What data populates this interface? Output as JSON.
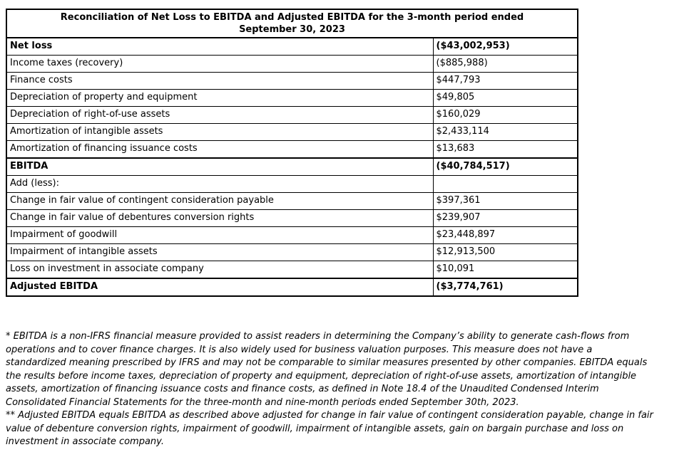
{
  "colors": {
    "border": "#000000",
    "text": "#000000",
    "background": "#ffffff"
  },
  "table": {
    "title": {
      "line1": "Reconciliation of Net Loss to EBITDA and Adjusted EBITDA for the 3-month period ended",
      "line2": "September 30, 2023"
    },
    "rows": [
      {
        "label": "Net loss",
        "value": "($43,002,953)",
        "bold": true,
        "top_border": false
      },
      {
        "label": "Income taxes (recovery)",
        "value": "($885,988)",
        "bold": false,
        "top_border": false
      },
      {
        "label": "Finance costs",
        "value": "$447,793",
        "bold": false,
        "top_border": false
      },
      {
        "label": "Depreciation of property and equipment",
        "value": "$49,805",
        "bold": false,
        "top_border": false
      },
      {
        "label": "Depreciation of right-of-use assets",
        "value": "$160,029",
        "bold": false,
        "top_border": false
      },
      {
        "label": "Amortization of intangible assets",
        "value": "$2,433,114",
        "bold": false,
        "top_border": false
      },
      {
        "label": "Amortization of financing issuance costs",
        "value": "$13,683",
        "bold": false,
        "top_border": false
      },
      {
        "label": "EBITDA",
        "value": "($40,784,517)",
        "bold": true,
        "top_border": true
      },
      {
        "label": "Add (less):",
        "value": "",
        "bold": false,
        "top_border": false
      },
      {
        "label": "Change in fair value of contingent consideration payable",
        "value": "$397,361",
        "bold": false,
        "top_border": false
      },
      {
        "label": "Change in fair value of debentures conversion rights",
        "value": "$239,907",
        "bold": false,
        "top_border": false
      },
      {
        "label": "Impairment of goodwill",
        "value": "$23,448,897",
        "bold": false,
        "top_border": false
      },
      {
        "label": "Impairment of intangible assets",
        "value": "$12,913,500",
        "bold": false,
        "top_border": false
      },
      {
        "label": "Loss on investment in associate company",
        "value": "$10,091",
        "bold": false,
        "top_border": false
      },
      {
        "label": "Adjusted EBITDA",
        "value": "($3,774,761)",
        "bold": true,
        "top_border": true
      }
    ]
  },
  "footnotes": [
    "* EBITDA is a non-IFRS financial measure provided to assist readers in determining the Company’s ability to generate cash-flows from operations and to cover finance charges. It is also widely used for business valuation purposes. This measure does not have a standardized meaning prescribed by IFRS and may not be comparable to similar measures presented by other companies. EBITDA equals the results before income taxes, depreciation of property and equipment, depreciation of right-of-use assets, amortization of intangible assets, amortization of financing issuance costs and finance costs, as defined in Note 18.4 of the Unaudited Condensed Interim Consolidated Financial Statements for the three-month and nine-month periods ended September 30th, 2023.",
    "** Adjusted EBITDA equals EBITDA as described above adjusted for change in fair value of contingent consideration payable, change in fair value of debenture conversion rights, impairment of goodwill, impairment of intangible assets, gain on bargain purchase and loss on investment in associate company."
  ]
}
